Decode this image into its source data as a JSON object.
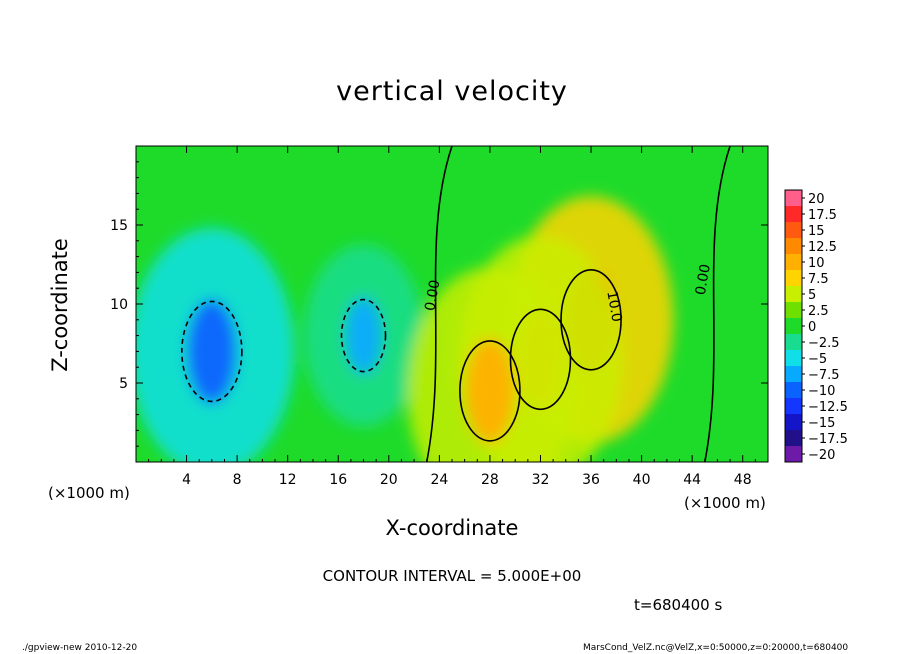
{
  "chart_data": {
    "type": "heatmap",
    "title": "vertical velocity",
    "xlabel": "X-coordinate",
    "ylabel": "Z-coordinate",
    "x_unit_label": "(×1000 m)",
    "x_ticks": [
      4,
      8,
      12,
      16,
      20,
      24,
      28,
      32,
      36,
      40,
      44,
      48
    ],
    "y_ticks": [
      5,
      10,
      15
    ],
    "xlim": [
      0,
      50
    ],
    "ylim": [
      0,
      20
    ],
    "colorbar_levels": [
      "20",
      "17.5",
      "15",
      "12.5",
      "10",
      "7.5",
      "5",
      "2.5",
      "0",
      "-2.5",
      "-5",
      "-7.5",
      "-10",
      "-12.5",
      "-15",
      "-17.5",
      "-20"
    ],
    "colorbar_colors": [
      "#ff5f8a",
      "#ff2a28",
      "#ff5a10",
      "#ff8a00",
      "#ffb000",
      "#ffd400",
      "#c8ef00",
      "#6fdf00",
      "#1edb2a",
      "#18dd90",
      "#11dfe8",
      "#08aaff",
      "#0a62ff",
      "#1536ff",
      "#1414c8",
      "#20108a",
      "#6e1aa8"
    ],
    "contour_labels": [
      "0.00",
      "10.0",
      "0.00"
    ],
    "contour_interval": "CONTOUR INTERVAL = 5.000E+00",
    "time": "t=680400 s",
    "features": [
      {
        "kind": "downdraft",
        "x": 6,
        "z": 7,
        "peak": -10
      },
      {
        "kind": "downdraft",
        "x": 18,
        "z": 8,
        "peak": -7.5
      },
      {
        "kind": "updraft",
        "x": 36,
        "z": 9,
        "peak": 12.5
      },
      {
        "kind": "updraft",
        "x": 32,
        "z": 6.5,
        "peak": 10
      },
      {
        "kind": "updraft",
        "x": 28,
        "z": 4.5,
        "peak": 10
      }
    ]
  },
  "footer": {
    "left": "./gpview-new  2010-12-20",
    "right": "MarsCond_VelZ.nc@VelZ,x=0:50000,z=0:20000,t=680400"
  }
}
